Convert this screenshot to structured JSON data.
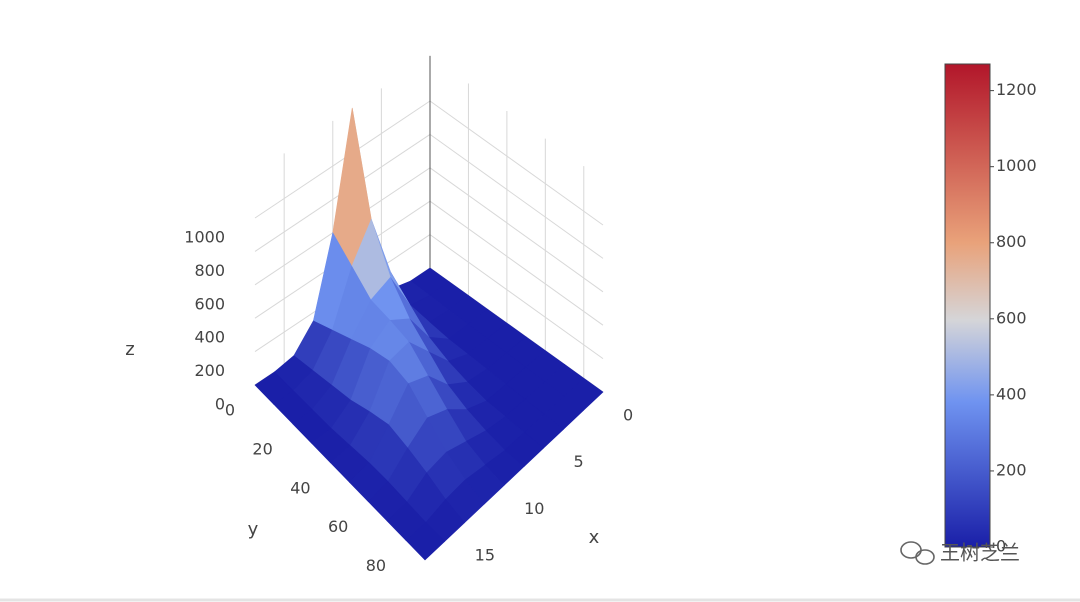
{
  "chart_data": {
    "type": "surface",
    "x_label": "x",
    "y_label": "y",
    "z_label": "z",
    "x": [
      0,
      2,
      4,
      6,
      8,
      10,
      12,
      14,
      16,
      18
    ],
    "y": [
      0,
      10,
      20,
      30,
      40,
      50,
      60,
      70,
      80,
      90
    ],
    "z": [
      [
        0,
        0,
        30,
        200,
        1270,
        600,
        150,
        20,
        0,
        0
      ],
      [
        0,
        0,
        20,
        300,
        700,
        500,
        200,
        40,
        0,
        0
      ],
      [
        0,
        0,
        10,
        200,
        450,
        400,
        250,
        60,
        0,
        0
      ],
      [
        0,
        0,
        0,
        100,
        300,
        380,
        300,
        80,
        0,
        0
      ],
      [
        0,
        0,
        0,
        50,
        200,
        350,
        330,
        120,
        10,
        0
      ],
      [
        0,
        0,
        0,
        20,
        100,
        250,
        300,
        150,
        20,
        0
      ],
      [
        0,
        0,
        0,
        0,
        50,
        150,
        200,
        120,
        20,
        0
      ],
      [
        0,
        0,
        0,
        0,
        20,
        60,
        100,
        80,
        10,
        0
      ],
      [
        0,
        0,
        0,
        0,
        0,
        20,
        40,
        30,
        0,
        0
      ],
      [
        0,
        0,
        0,
        0,
        0,
        0,
        0,
        0,
        0,
        0
      ]
    ],
    "xlim": [
      0,
      18
    ],
    "ylim": [
      0,
      90
    ],
    "zlim": [
      0,
      1270
    ],
    "xticks": [
      0,
      5,
      10,
      15
    ],
    "yticks": [
      0,
      20,
      40,
      60,
      80
    ],
    "zticks": [
      0,
      200,
      400,
      600,
      800,
      1000
    ],
    "grid": true,
    "colorscale": [
      [
        0,
        "#1a1fa8"
      ],
      [
        0.3,
        "#6f93f0"
      ],
      [
        0.47,
        "#d5d5d8"
      ],
      [
        0.63,
        "#e9a27a"
      ],
      [
        1,
        "#b2162a"
      ]
    ],
    "colorbar": {
      "range": [
        0,
        1270
      ],
      "ticks": [
        0,
        200,
        400,
        600,
        800,
        1000,
        1200
      ]
    },
    "watermark": "王树芝兰"
  }
}
